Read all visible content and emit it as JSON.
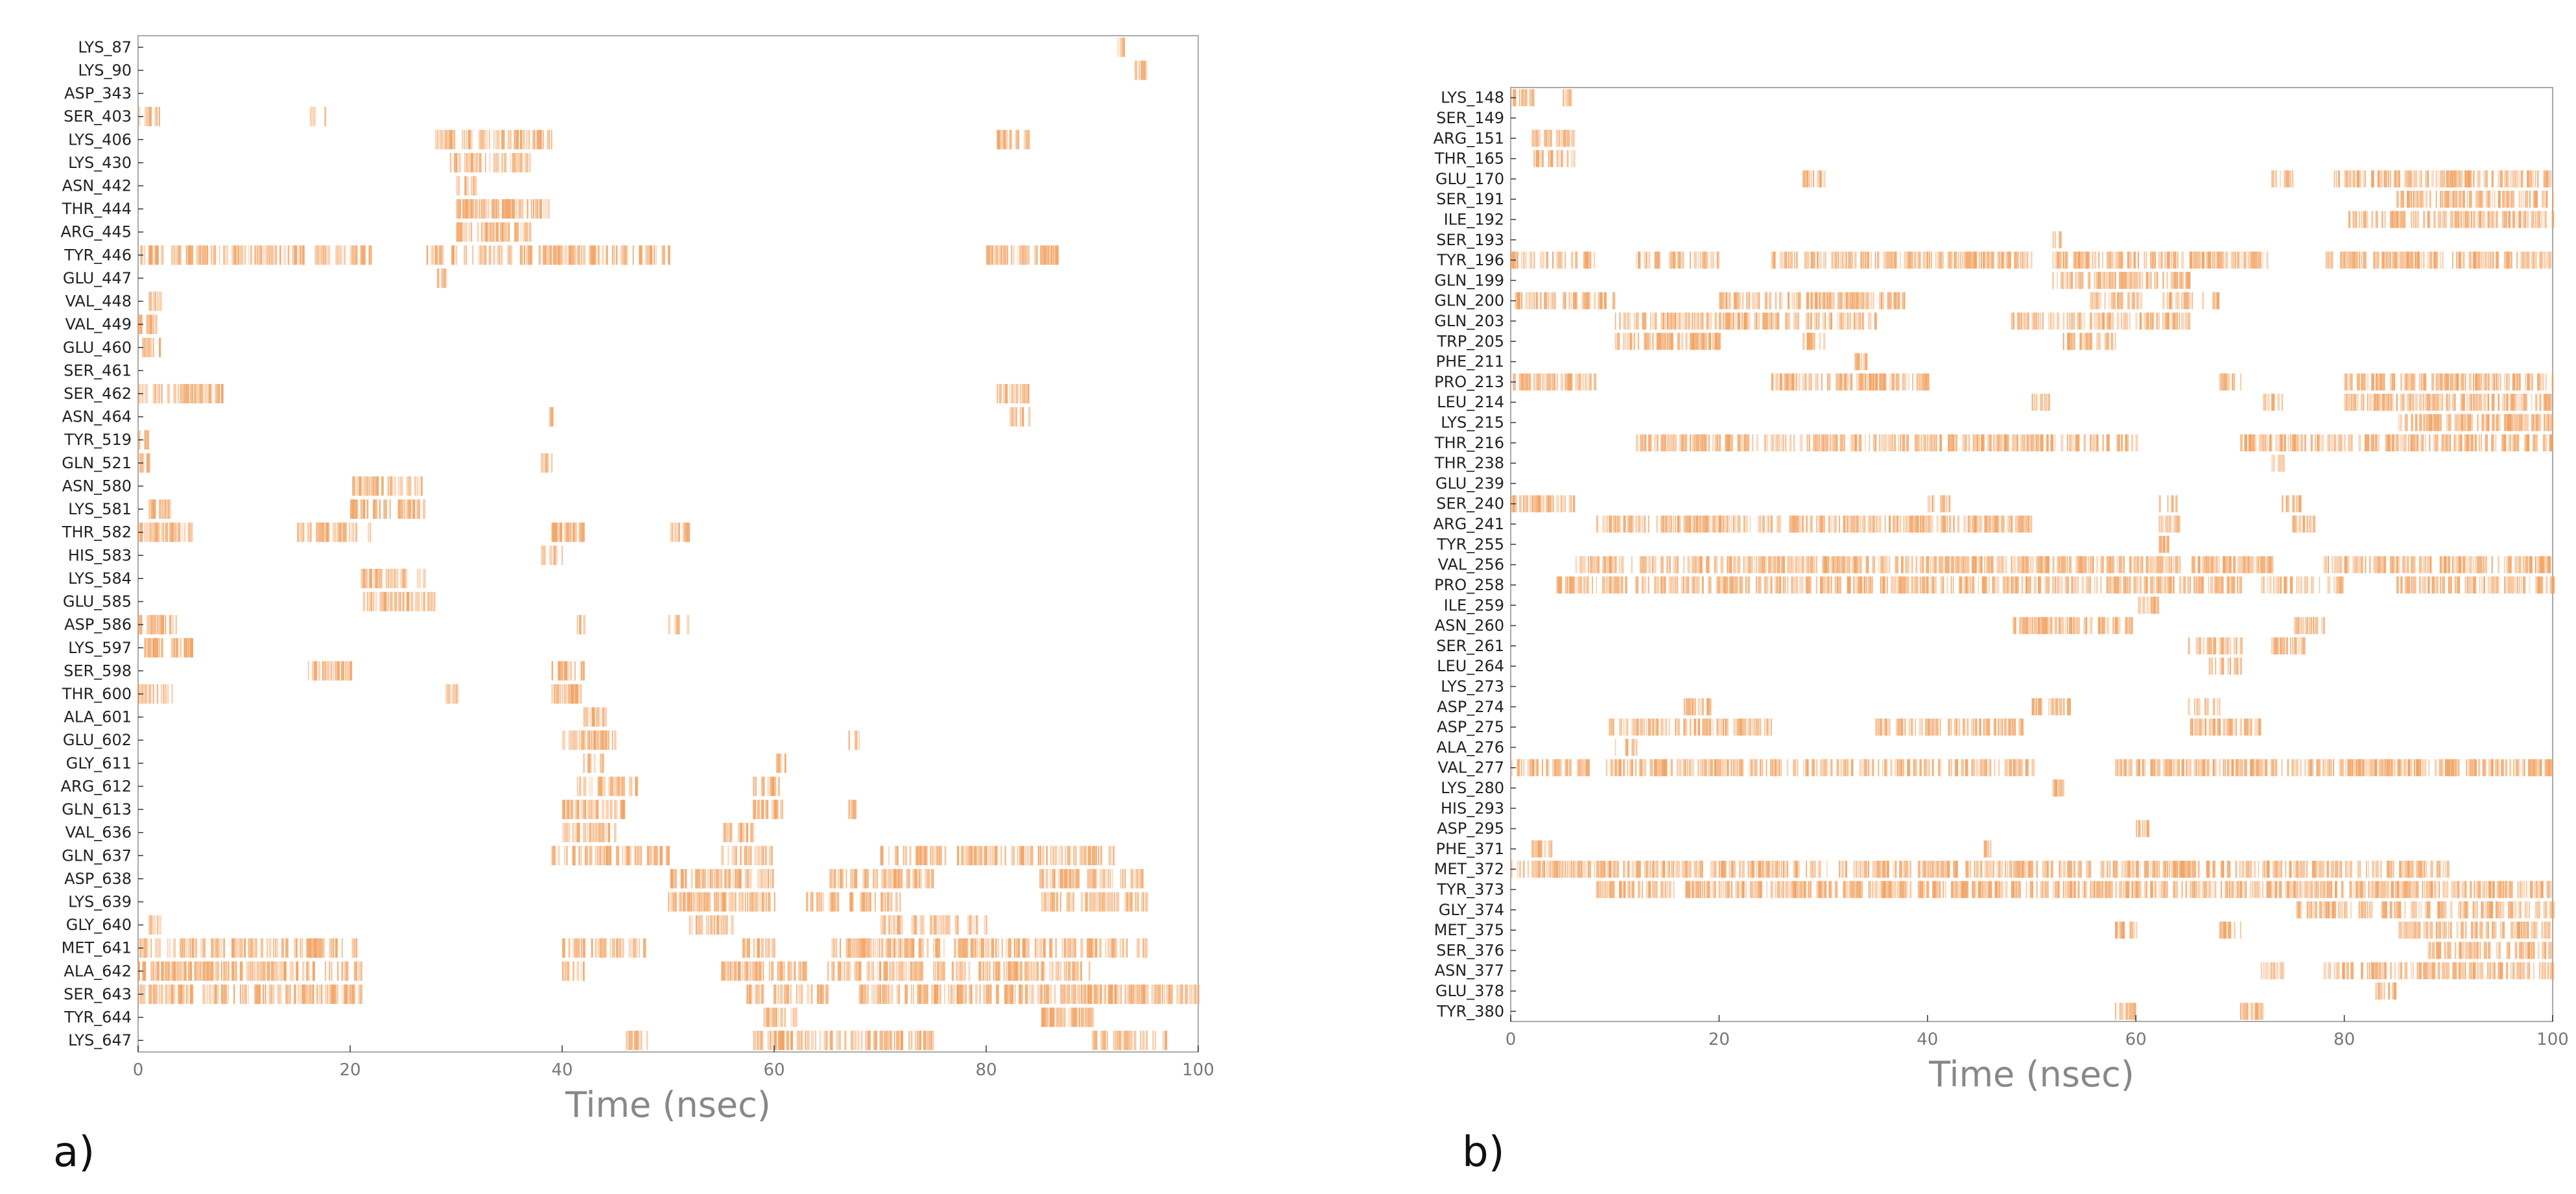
{
  "figure": {
    "panel_labels": [
      "a)",
      "b)"
    ]
  },
  "style": {
    "interaction_color": "#F2A15F",
    "axis_color": "#333333",
    "tick_label_color": "#777777",
    "xlabel_color": "#888888",
    "frame_color": "#aaaaaa"
  },
  "chart_data": [
    {
      "type": "heatmap",
      "panel": "a)",
      "title": "",
      "xlabel": "Time (nsec)",
      "ylabel": "",
      "xlim": [
        0,
        100
      ],
      "xticks": [
        0,
        20,
        40,
        60,
        80,
        100
      ],
      "grid": false,
      "legend": "none",
      "rows": [
        {
          "residue": "LYS_87",
          "intervals": [
            [
              92,
              93
            ]
          ]
        },
        {
          "residue": "LYS_90",
          "intervals": [
            [
              94,
              95
            ]
          ]
        },
        {
          "residue": "ASP_343",
          "intervals": []
        },
        {
          "residue": "SER_403",
          "intervals": [
            [
              0,
              2
            ],
            [
              16,
              18
            ]
          ]
        },
        {
          "residue": "LYS_406",
          "intervals": [
            [
              28,
              39
            ],
            [
              81,
              84
            ]
          ]
        },
        {
          "residue": "LYS_430",
          "intervals": [
            [
              29,
              37
            ]
          ]
        },
        {
          "residue": "ASN_442",
          "intervals": [
            [
              30,
              32
            ]
          ]
        },
        {
          "residue": "THR_444",
          "intervals": [
            [
              30,
              39
            ]
          ]
        },
        {
          "residue": "ARG_445",
          "intervals": [
            [
              30,
              37
            ]
          ]
        },
        {
          "residue": "TYR_446",
          "intervals": [
            [
              0,
              10
            ],
            [
              10,
              22
            ],
            [
              27,
              40
            ],
            [
              40,
              50
            ],
            [
              80,
              87
            ]
          ]
        },
        {
          "residue": "GLU_447",
          "intervals": [
            [
              28,
              29
            ]
          ]
        },
        {
          "residue": "VAL_448",
          "intervals": [
            [
              1,
              2
            ]
          ]
        },
        {
          "residue": "VAL_449",
          "intervals": [
            [
              0,
              2
            ]
          ]
        },
        {
          "residue": "GLU_460",
          "intervals": [
            [
              0,
              2
            ]
          ]
        },
        {
          "residue": "SER_461",
          "intervals": []
        },
        {
          "residue": "SER_462",
          "intervals": [
            [
              0,
              8
            ],
            [
              81,
              84
            ]
          ]
        },
        {
          "residue": "ASN_464",
          "intervals": [
            [
              38,
              39
            ],
            [
              82,
              84
            ]
          ]
        },
        {
          "residue": "TYR_519",
          "intervals": [
            [
              0,
              1
            ]
          ]
        },
        {
          "residue": "GLN_521",
          "intervals": [
            [
              0,
              1
            ],
            [
              38,
              39
            ]
          ]
        },
        {
          "residue": "ASN_580",
          "intervals": [
            [
              20,
              27
            ]
          ]
        },
        {
          "residue": "LYS_581",
          "intervals": [
            [
              1,
              3
            ],
            [
              20,
              27
            ]
          ]
        },
        {
          "residue": "THR_582",
          "intervals": [
            [
              0,
              5
            ],
            [
              15,
              22
            ],
            [
              39,
              42
            ],
            [
              50,
              52
            ]
          ]
        },
        {
          "residue": "HIS_583",
          "intervals": [
            [
              38,
              40
            ]
          ]
        },
        {
          "residue": "LYS_584",
          "intervals": [
            [
              21,
              27
            ]
          ]
        },
        {
          "residue": "GLU_585",
          "intervals": [
            [
              21,
              28
            ]
          ]
        },
        {
          "residue": "ASP_586",
          "intervals": [
            [
              0,
              4
            ],
            [
              41,
              42
            ],
            [
              50,
              52
            ]
          ]
        },
        {
          "residue": "LYS_597",
          "intervals": [
            [
              0,
              5
            ]
          ]
        },
        {
          "residue": "SER_598",
          "intervals": [
            [
              16,
              20
            ],
            [
              39,
              42
            ]
          ]
        },
        {
          "residue": "THR_600",
          "intervals": [
            [
              0,
              4
            ],
            [
              29,
              30
            ],
            [
              39,
              42
            ]
          ]
        },
        {
          "residue": "ALA_601",
          "intervals": [
            [
              42,
              44
            ]
          ]
        },
        {
          "residue": "GLU_602",
          "intervals": [
            [
              40,
              45
            ],
            [
              67,
              68
            ]
          ]
        },
        {
          "residue": "GLY_611",
          "intervals": [
            [
              42,
              44
            ],
            [
              60,
              61
            ]
          ]
        },
        {
          "residue": "ARG_612",
          "intervals": [
            [
              41,
              47
            ],
            [
              58,
              61
            ]
          ]
        },
        {
          "residue": "GLN_613",
          "intervals": [
            [
              40,
              46
            ],
            [
              58,
              61
            ],
            [
              67,
              68
            ]
          ]
        },
        {
          "residue": "VAL_636",
          "intervals": [
            [
              40,
              45
            ],
            [
              55,
              58
            ]
          ]
        },
        {
          "residue": "GLN_637",
          "intervals": [
            [
              39,
              50
            ],
            [
              55,
              60
            ],
            [
              70,
              92
            ]
          ]
        },
        {
          "residue": "ASP_638",
          "intervals": [
            [
              50,
              60
            ],
            [
              65,
              75
            ],
            [
              85,
              95
            ]
          ]
        },
        {
          "residue": "LYS_639",
          "intervals": [
            [
              50,
              60
            ],
            [
              63,
              72
            ],
            [
              85,
              95
            ]
          ]
        },
        {
          "residue": "GLY_640",
          "intervals": [
            [
              1,
              2
            ],
            [
              52,
              56
            ],
            [
              70,
              80
            ]
          ]
        },
        {
          "residue": "MET_641",
          "intervals": [
            [
              0,
              21
            ],
            [
              40,
              48
            ],
            [
              57,
              60
            ],
            [
              65,
              95
            ]
          ]
        },
        {
          "residue": "ALA_642",
          "intervals": [
            [
              0,
              21
            ],
            [
              40,
              42
            ],
            [
              55,
              63
            ],
            [
              65,
              90
            ]
          ]
        },
        {
          "residue": "SER_643",
          "intervals": [
            [
              0,
              21
            ],
            [
              57,
              65
            ],
            [
              68,
              100
            ]
          ]
        },
        {
          "residue": "TYR_644",
          "intervals": [
            [
              59,
              62
            ],
            [
              85,
              90
            ]
          ]
        },
        {
          "residue": "LYS_647",
          "intervals": [
            [
              46,
              48
            ],
            [
              58,
              75
            ],
            [
              90,
              97
            ]
          ]
        }
      ]
    },
    {
      "type": "heatmap",
      "panel": "b)",
      "title": "",
      "xlabel": "Time (nsec)",
      "ylabel": "",
      "xlim": [
        0,
        100
      ],
      "xticks": [
        0,
        20,
        40,
        60,
        80,
        100
      ],
      "grid": false,
      "legend": "none",
      "rows": [
        {
          "residue": "LYS_148",
          "intervals": [
            [
              0,
              2
            ],
            [
              5,
              6
            ]
          ]
        },
        {
          "residue": "SER_149",
          "intervals": []
        },
        {
          "residue": "ARG_151",
          "intervals": [
            [
              2,
              6
            ]
          ]
        },
        {
          "residue": "THR_165",
          "intervals": [
            [
              2,
              6
            ]
          ]
        },
        {
          "residue": "GLU_170",
          "intervals": [
            [
              28,
              30
            ],
            [
              73,
              75
            ],
            [
              79,
              100
            ]
          ]
        },
        {
          "residue": "SER_191",
          "intervals": [
            [
              85,
              100
            ]
          ]
        },
        {
          "residue": "ILE_192",
          "intervals": [
            [
              80,
              100
            ]
          ]
        },
        {
          "residue": "SER_193",
          "intervals": [
            [
              52,
              53
            ]
          ]
        },
        {
          "residue": "TYR_196",
          "intervals": [
            [
              0,
              8
            ],
            [
              12,
              20
            ],
            [
              25,
              50
            ],
            [
              52,
              73
            ],
            [
              78,
              100
            ]
          ]
        },
        {
          "residue": "GLN_199",
          "intervals": [
            [
              52,
              65
            ]
          ]
        },
        {
          "residue": "GLN_200",
          "intervals": [
            [
              0,
              10
            ],
            [
              20,
              38
            ],
            [
              55,
              68
            ]
          ]
        },
        {
          "residue": "GLN_203",
          "intervals": [
            [
              10,
              35
            ],
            [
              48,
              65
            ]
          ]
        },
        {
          "residue": "TRP_205",
          "intervals": [
            [
              10,
              20
            ],
            [
              28,
              30
            ],
            [
              53,
              58
            ]
          ]
        },
        {
          "residue": "PHE_211",
          "intervals": [
            [
              33,
              34
            ]
          ]
        },
        {
          "residue": "PRO_213",
          "intervals": [
            [
              0,
              8
            ],
            [
              25,
              40
            ],
            [
              68,
              70
            ],
            [
              80,
              100
            ]
          ]
        },
        {
          "residue": "LEU_214",
          "intervals": [
            [
              50,
              52
            ],
            [
              72,
              74
            ],
            [
              80,
              100
            ]
          ]
        },
        {
          "residue": "LYS_215",
          "intervals": [
            [
              85,
              100
            ]
          ]
        },
        {
          "residue": "THR_216",
          "intervals": [
            [
              12,
              28
            ],
            [
              28,
              50
            ],
            [
              50,
              60
            ],
            [
              70,
              100
            ]
          ]
        },
        {
          "residue": "THR_238",
          "intervals": [
            [
              73,
              74
            ]
          ]
        },
        {
          "residue": "GLU_239",
          "intervals": []
        },
        {
          "residue": "SER_240",
          "intervals": [
            [
              0,
              6
            ],
            [
              40,
              42
            ],
            [
              62,
              64
            ],
            [
              74,
              76
            ]
          ]
        },
        {
          "residue": "ARG_241",
          "intervals": [
            [
              8,
              50
            ],
            [
              62,
              64
            ],
            [
              75,
              78
            ]
          ]
        },
        {
          "residue": "TYR_255",
          "intervals": [
            [
              62,
              63
            ]
          ]
        },
        {
          "residue": "VAL_256",
          "intervals": [
            [
              6,
              73
            ],
            [
              78,
              100
            ]
          ]
        },
        {
          "residue": "PRO_258",
          "intervals": [
            [
              4,
              70
            ],
            [
              72,
              80
            ],
            [
              85,
              100
            ]
          ]
        },
        {
          "residue": "ILE_259",
          "intervals": [
            [
              60,
              62
            ]
          ]
        },
        {
          "residue": "ASN_260",
          "intervals": [
            [
              48,
              60
            ],
            [
              75,
              78
            ]
          ]
        },
        {
          "residue": "SER_261",
          "intervals": [
            [
              65,
              70
            ],
            [
              73,
              76
            ]
          ]
        },
        {
          "residue": "LEU_264",
          "intervals": [
            [
              67,
              70
            ]
          ]
        },
        {
          "residue": "LYS_273",
          "intervals": []
        },
        {
          "residue": "ASP_274",
          "intervals": [
            [
              16,
              19
            ],
            [
              50,
              54
            ],
            [
              65,
              68
            ]
          ]
        },
        {
          "residue": "ASP_275",
          "intervals": [
            [
              9,
              25
            ],
            [
              35,
              49
            ],
            [
              65,
              72
            ]
          ]
        },
        {
          "residue": "ALA_276",
          "intervals": [
            [
              10,
              12
            ]
          ]
        },
        {
          "residue": "VAL_277",
          "intervals": [
            [
              0,
              50
            ],
            [
              58,
              100
            ]
          ]
        },
        {
          "residue": "LYS_280",
          "intervals": [
            [
              52,
              53
            ]
          ]
        },
        {
          "residue": "HIS_293",
          "intervals": []
        },
        {
          "residue": "ASP_295",
          "intervals": [
            [
              60,
              61
            ]
          ]
        },
        {
          "residue": "PHE_371",
          "intervals": [
            [
              2,
              4
            ],
            [
              45,
              46
            ]
          ]
        },
        {
          "residue": "MET_372",
          "intervals": [
            [
              0,
              8
            ],
            [
              8,
              90
            ]
          ]
        },
        {
          "residue": "TYR_373",
          "intervals": [
            [
              8,
              100
            ]
          ]
        },
        {
          "residue": "GLY_374",
          "intervals": [
            [
              75,
              100
            ]
          ]
        },
        {
          "residue": "MET_375",
          "intervals": [
            [
              58,
              60
            ],
            [
              68,
              70
            ],
            [
              85,
              100
            ]
          ]
        },
        {
          "residue": "SER_376",
          "intervals": [
            [
              88,
              100
            ]
          ]
        },
        {
          "residue": "ASN_377",
          "intervals": [
            [
              72,
              74
            ],
            [
              78,
              100
            ]
          ]
        },
        {
          "residue": "GLU_378",
          "intervals": [
            [
              83,
              85
            ]
          ]
        },
        {
          "residue": "TYR_380",
          "intervals": [
            [
              58,
              60
            ],
            [
              70,
              72
            ]
          ]
        }
      ]
    }
  ]
}
